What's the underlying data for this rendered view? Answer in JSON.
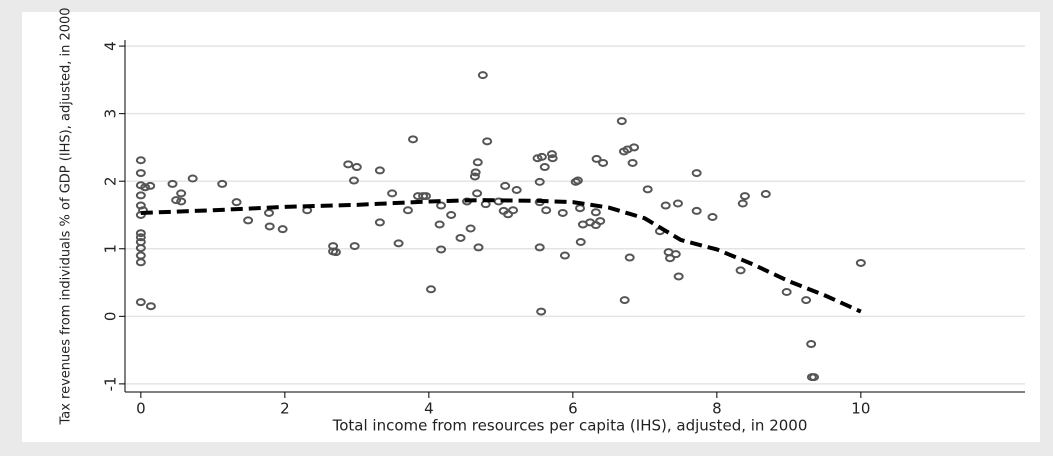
{
  "chart_data": {
    "type": "scatter",
    "x_label": "Total income from resources per capita (IHS), adjusted, in 2000",
    "y_label": "Tax revenues from individuals % of GDP (IHS), adjusted, in 2000",
    "xlim": [
      -0.22,
      12.28
    ],
    "ylim": [
      -1.12,
      4.09
    ],
    "xticks": [
      0,
      2,
      4,
      6,
      8,
      10
    ],
    "yticks": [
      -1,
      0,
      1,
      2,
      3,
      4
    ],
    "grid": true,
    "series": [
      {
        "type": "scatter",
        "color": "#555555",
        "x": [
          0,
          0,
          0,
          0.06,
          0.13,
          0,
          0,
          0,
          0,
          0,
          0,
          0,
          0,
          0,
          0,
          0.14,
          0.03,
          0.44,
          0.49,
          0.56,
          0.56,
          0.72,
          1.13,
          1.33,
          1.49,
          1.78,
          1.79,
          1.97,
          2.31,
          2.67,
          2.67,
          2.71,
          2.88,
          2.96,
          3.0,
          2.97,
          3.32,
          3.32,
          3.49,
          3.58,
          3.71,
          3.78,
          3.85,
          3.92,
          3.96,
          4.03,
          4.15,
          4.17,
          4.17,
          4.31,
          4.44,
          4.53,
          4.58,
          4.64,
          4.65,
          4.68,
          4.67,
          4.69,
          4.75,
          4.81,
          4.79,
          4.97,
          5.04,
          5.06,
          5.1,
          5.17,
          5.22,
          5.51,
          5.57,
          5.54,
          5.54,
          5.54,
          5.56,
          5.61,
          5.63,
          5.71,
          5.72,
          5.86,
          5.89,
          6.04,
          6.07,
          6.1,
          6.11,
          6.14,
          6.24,
          6.32,
          6.32,
          6.33,
          6.42,
          6.38,
          6.68,
          6.71,
          6.76,
          6.85,
          6.72,
          6.79,
          6.83,
          7.04,
          7.21,
          7.29,
          7.33,
          7.35,
          7.43,
          7.46,
          7.47,
          7.72,
          7.72,
          7.94,
          8.33,
          8.36,
          8.39,
          8.68,
          8.97,
          9.24,
          9.31,
          9.32,
          9.35,
          10.0
        ],
        "values": [
          2.31,
          2.12,
          1.94,
          1.91,
          1.93,
          1.79,
          1.64,
          1.5,
          1.23,
          1.17,
          1.1,
          1.01,
          0.9,
          0.8,
          0.21,
          0.15,
          1.57,
          1.96,
          1.72,
          1.82,
          1.7,
          2.04,
          1.96,
          1.69,
          1.42,
          1.53,
          1.33,
          1.29,
          1.57,
          1.04,
          0.96,
          0.95,
          2.25,
          2.01,
          2.21,
          1.04,
          2.16,
          1.39,
          1.82,
          1.08,
          1.57,
          2.62,
          1.78,
          1.78,
          1.78,
          0.4,
          1.36,
          1.64,
          0.99,
          1.5,
          1.16,
          1.7,
          1.3,
          2.07,
          2.13,
          2.28,
          1.82,
          1.02,
          3.57,
          2.59,
          1.66,
          1.7,
          1.56,
          1.93,
          1.51,
          1.57,
          1.87,
          2.34,
          2.36,
          1.99,
          1.69,
          1.02,
          0.07,
          2.21,
          1.57,
          2.4,
          2.34,
          1.53,
          0.9,
          1.99,
          2.01,
          1.6,
          1.1,
          1.36,
          1.39,
          1.35,
          1.54,
          2.33,
          2.27,
          1.41,
          2.89,
          2.44,
          2.47,
          2.5,
          0.24,
          0.87,
          2.27,
          1.88,
          1.26,
          1.64,
          0.95,
          0.86,
          0.92,
          1.67,
          0.59,
          2.12,
          1.56,
          1.47,
          0.68,
          1.67,
          1.78,
          1.81,
          0.36,
          0.24,
          -0.41,
          -0.9,
          -0.9,
          0.79
        ]
      },
      {
        "type": "line",
        "color": "#000000",
        "dashed": true,
        "x": [
          0,
          1,
          2,
          3,
          4,
          4.7,
          5.5,
          6,
          6.5,
          7,
          7.5,
          8,
          8.5,
          9,
          9.5,
          10
        ],
        "values": [
          1.53,
          1.57,
          1.62,
          1.65,
          1.7,
          1.72,
          1.71,
          1.69,
          1.61,
          1.45,
          1.13,
          0.99,
          0.77,
          0.52,
          0.31,
          0.07
        ]
      }
    ]
  }
}
